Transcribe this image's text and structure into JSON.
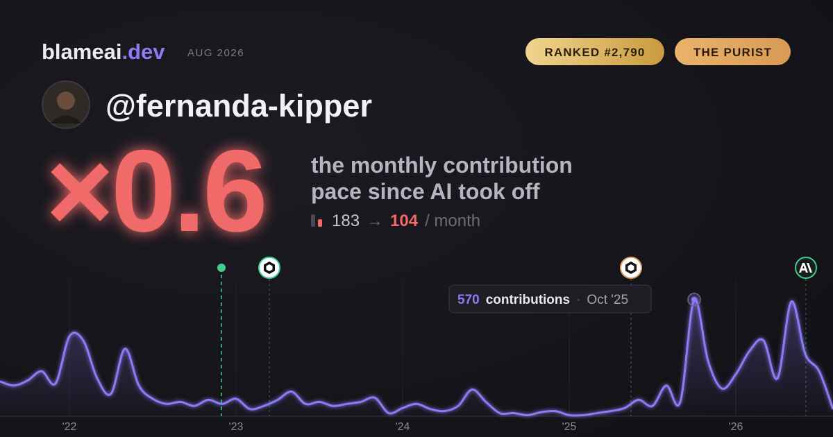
{
  "header": {
    "brand": "blameai",
    "domain": ".dev",
    "date": "AUG 2026"
  },
  "badges": [
    "RANKED #2,790",
    "THE PURIST"
  ],
  "profile": {
    "handle": "@fernanda-kipper"
  },
  "headline": {
    "multiplier": "×0.6",
    "description_lines": [
      "the monthly contribution",
      "pace since AI took off"
    ],
    "before": 183,
    "arrow": "→",
    "after": 104,
    "unit": "/ month"
  },
  "chart_data": {
    "type": "line",
    "categories": [
      null,
      null,
      null,
      null,
      null,
      "'22",
      null,
      null,
      null,
      null,
      null,
      null,
      null,
      null,
      null,
      null,
      null,
      "'23",
      null,
      null,
      null,
      null,
      null,
      null,
      null,
      null,
      null,
      null,
      null,
      "'24",
      null,
      null,
      null,
      null,
      null,
      null,
      null,
      null,
      null,
      null,
      null,
      "'25",
      null,
      null,
      null,
      null,
      null,
      null,
      null,
      null,
      null,
      null,
      null,
      "'26",
      null,
      null,
      null,
      null,
      null,
      null,
      null
    ],
    "values": [
      170,
      150,
      175,
      220,
      160,
      390,
      370,
      185,
      110,
      330,
      150,
      85,
      60,
      70,
      50,
      80,
      60,
      85,
      35,
      50,
      80,
      120,
      60,
      70,
      50,
      60,
      70,
      90,
      15,
      40,
      60,
      35,
      25,
      50,
      130,
      70,
      15,
      15,
      5,
      20,
      25,
      5,
      5,
      15,
      25,
      40,
      80,
      50,
      150,
      70,
      570,
      270,
      135,
      205,
      320,
      370,
      185,
      560,
      305,
      220,
      35
    ],
    "color": "#8b7cf6",
    "ylim": [
      0,
      600
    ],
    "tooltip": {
      "label": "contributions",
      "date": "Oct '25"
    }
  }
}
